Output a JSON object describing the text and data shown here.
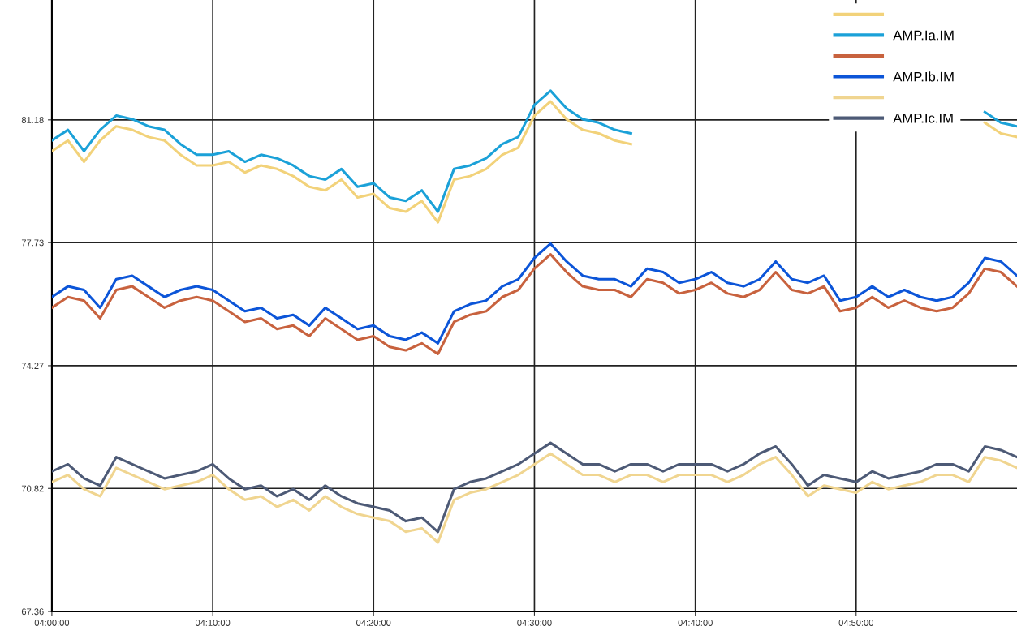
{
  "chart_data": {
    "type": "line",
    "x": [
      4,
      4.0167,
      4.0333,
      4.05,
      4.0667,
      4.0833,
      4.1,
      4.1167,
      4.1333,
      4.15,
      4.1667,
      4.1833,
      4.2,
      4.2167,
      4.2333,
      4.25,
      4.2667,
      4.2833,
      4.3,
      4.3167,
      4.3333,
      4.35,
      4.3667,
      4.3833,
      4.4,
      4.4167,
      4.4333,
      4.45,
      4.4667,
      4.4833,
      4.5,
      4.5167,
      4.5333,
      4.55,
      4.5667,
      4.5833,
      4.6,
      4.6167,
      4.6333,
      4.65,
      4.6667,
      4.6833,
      4.7,
      4.7167,
      4.7333,
      4.75,
      4.7667,
      4.7833,
      4.8,
      4.8167,
      4.8333,
      4.85,
      4.8667,
      4.8833,
      4.9,
      4.9167,
      4.9333,
      4.95,
      4.9667,
      4.9833,
      5.0
    ],
    "series": [
      {
        "color": "#f2d27a",
        "values": [
          80.3,
          80.6,
          80.0,
          80.6,
          81.0,
          80.9,
          80.7,
          80.6,
          80.2,
          79.9,
          79.9,
          80.0,
          79.7,
          79.9,
          79.8,
          79.6,
          79.3,
          79.2,
          79.5,
          79.0,
          79.1,
          78.7,
          78.6,
          78.9,
          78.3,
          79.5,
          79.6,
          79.8,
          80.2,
          80.4,
          81.3,
          81.7,
          81.2,
          80.9,
          80.8,
          80.6,
          80.5,
          null,
          null,
          null,
          null,
          null,
          null,
          null,
          null,
          null,
          null,
          null,
          null,
          null,
          null,
          null,
          null,
          null,
          null,
          null,
          null,
          null,
          81.1,
          80.8,
          80.7
        ]
      },
      {
        "name": "AMP.Ia.IM",
        "color": "#1ba1d8",
        "values": [
          80.6,
          80.9,
          80.3,
          80.9,
          81.3,
          81.2,
          81.0,
          80.9,
          80.5,
          80.2,
          80.2,
          80.3,
          80.0,
          80.2,
          80.1,
          79.9,
          79.6,
          79.5,
          79.8,
          79.3,
          79.4,
          79.0,
          78.9,
          79.2,
          78.6,
          79.8,
          79.9,
          80.1,
          80.5,
          80.7,
          81.6,
          82.0,
          81.5,
          81.2,
          81.1,
          80.9,
          80.8,
          null,
          null,
          null,
          null,
          null,
          null,
          null,
          null,
          null,
          null,
          null,
          null,
          null,
          null,
          null,
          null,
          null,
          null,
          null,
          null,
          null,
          81.4,
          81.1,
          81.0
        ]
      },
      {
        "color": "#c8623e",
        "values": [
          75.9,
          76.2,
          76.1,
          75.6,
          76.4,
          76.5,
          76.2,
          75.9,
          76.1,
          76.2,
          76.1,
          75.8,
          75.5,
          75.6,
          75.3,
          75.4,
          75.1,
          75.6,
          75.3,
          75.0,
          75.1,
          74.8,
          74.7,
          74.9,
          74.6,
          75.5,
          75.7,
          75.8,
          76.2,
          76.4,
          77.0,
          77.4,
          76.9,
          76.5,
          76.4,
          76.4,
          76.2,
          76.7,
          76.6,
          76.3,
          76.4,
          76.6,
          76.3,
          76.2,
          76.4,
          76.9,
          76.4,
          76.3,
          76.5,
          75.8,
          75.9,
          76.2,
          75.9,
          76.1,
          75.9,
          75.8,
          75.9,
          76.3,
          77.0,
          76.9,
          76.5
        ]
      },
      {
        "name": "AMP.Ib.IM",
        "color": "#0c55d8",
        "values": [
          76.2,
          76.5,
          76.4,
          75.9,
          76.7,
          76.8,
          76.5,
          76.2,
          76.4,
          76.5,
          76.4,
          76.1,
          75.8,
          75.9,
          75.6,
          75.7,
          75.4,
          75.9,
          75.6,
          75.3,
          75.4,
          75.1,
          75.0,
          75.2,
          74.9,
          75.8,
          76.0,
          76.1,
          76.5,
          76.7,
          77.3,
          77.7,
          77.2,
          76.8,
          76.7,
          76.7,
          76.5,
          77.0,
          76.9,
          76.6,
          76.7,
          76.9,
          76.6,
          76.5,
          76.7,
          77.2,
          76.7,
          76.6,
          76.8,
          76.1,
          76.2,
          76.5,
          76.2,
          76.4,
          76.2,
          76.1,
          76.2,
          76.6,
          77.3,
          77.2,
          76.8
        ]
      },
      {
        "color": "#f0d590",
        "values": [
          71.0,
          71.2,
          70.8,
          70.6,
          71.4,
          71.2,
          71.0,
          70.8,
          70.9,
          71.0,
          71.2,
          70.8,
          70.5,
          70.6,
          70.3,
          70.5,
          70.2,
          70.6,
          70.3,
          70.1,
          70.0,
          69.9,
          69.6,
          69.7,
          69.3,
          70.5,
          70.7,
          70.8,
          71.0,
          71.2,
          71.5,
          71.8,
          71.5,
          71.2,
          71.2,
          71.0,
          71.2,
          71.2,
          71.0,
          71.2,
          71.2,
          71.2,
          71.0,
          71.2,
          71.5,
          71.7,
          71.2,
          70.6,
          70.9,
          70.8,
          70.7,
          71.0,
          70.8,
          70.9,
          71.0,
          71.2,
          71.2,
          71.0,
          71.7,
          71.6,
          71.4
        ]
      },
      {
        "name": "AMP.Ic.IM",
        "color": "#4d5a76",
        "values": [
          71.3,
          71.5,
          71.1,
          70.9,
          71.7,
          71.5,
          71.3,
          71.1,
          71.2,
          71.3,
          71.5,
          71.1,
          70.8,
          70.9,
          70.6,
          70.8,
          70.5,
          70.9,
          70.6,
          70.4,
          70.3,
          70.2,
          69.9,
          70.0,
          69.6,
          70.8,
          71.0,
          71.1,
          71.3,
          71.5,
          71.8,
          72.1,
          71.8,
          71.5,
          71.5,
          71.3,
          71.5,
          71.5,
          71.3,
          71.5,
          71.5,
          71.5,
          71.3,
          71.5,
          71.8,
          72.0,
          71.5,
          70.9,
          71.2,
          71.1,
          71.0,
          71.3,
          71.1,
          71.2,
          71.3,
          71.5,
          71.5,
          71.3,
          72.0,
          71.9,
          71.7
        ]
      }
    ],
    "xlim": [
      4.0,
      5.0
    ],
    "xticks": [
      {
        "value": 4.0,
        "label": "04:00:00"
      },
      {
        "value": 4.1667,
        "label": "04:10:00"
      },
      {
        "value": 4.3333,
        "label": "04:20:00"
      },
      {
        "value": 4.5,
        "label": "04:30:00"
      },
      {
        "value": 4.6667,
        "label": "04:40:00"
      },
      {
        "value": 4.8333,
        "label": "04:50:00"
      }
    ],
    "ylim": [
      67.36,
      84.55
    ],
    "yticks": [
      67.36,
      70.82,
      74.27,
      77.73,
      81.18
    ],
    "grid": true,
    "legend": "top right",
    "line_style": "solid",
    "marker": "none"
  }
}
